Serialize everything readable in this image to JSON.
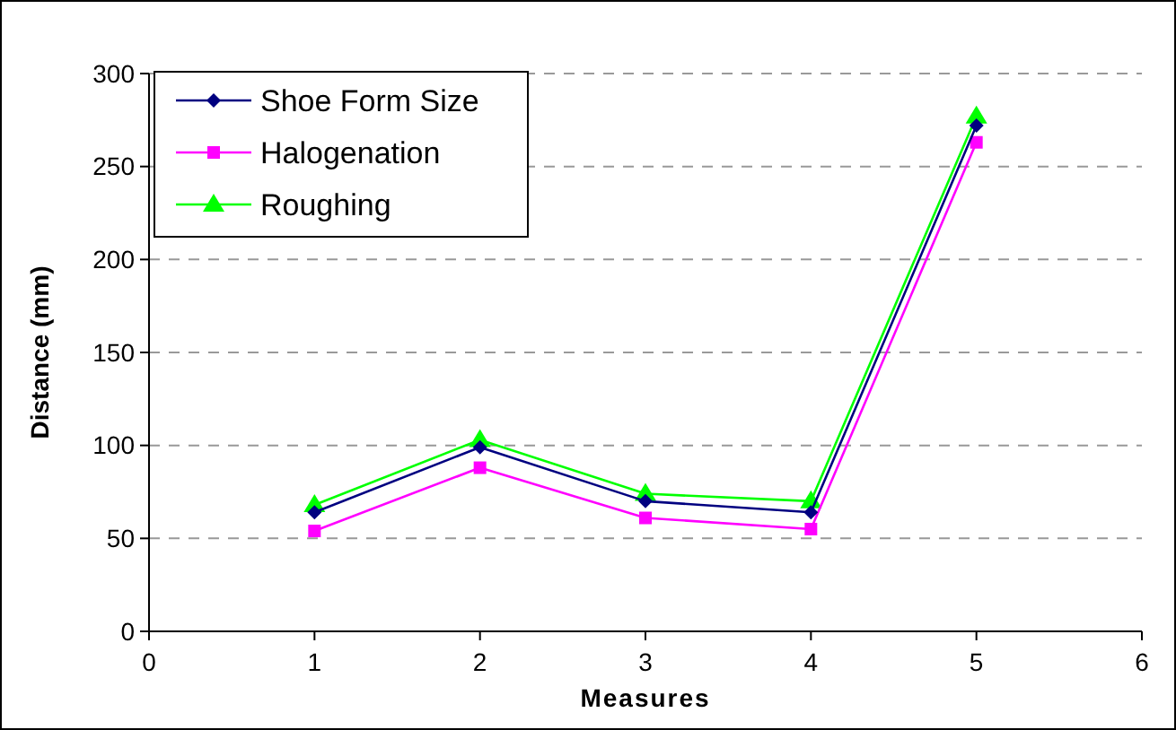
{
  "chart_data": {
    "type": "line",
    "xlabel": "Measures",
    "ylabel": "Distance (mm)",
    "x": [
      1,
      2,
      3,
      4,
      5
    ],
    "series": [
      {
        "name": "Shoe Form Size",
        "color": "#000080",
        "marker": "diamond",
        "values": [
          64,
          99,
          70,
          64,
          272
        ]
      },
      {
        "name": "Halogenation",
        "color": "#ff00ff",
        "marker": "square",
        "values": [
          54,
          88,
          61,
          55,
          263
        ]
      },
      {
        "name": "Roughing",
        "color": "#00ff00",
        "marker": "triangle",
        "values": [
          68,
          103,
          74,
          70,
          277
        ]
      }
    ],
    "xlim": [
      0,
      6
    ],
    "xticks": [
      0,
      1,
      2,
      3,
      4,
      5,
      6
    ],
    "ylim": [
      0,
      300
    ],
    "yticks": [
      0,
      50,
      100,
      150,
      200,
      250,
      300
    ],
    "grid": "y",
    "legend": "top left",
    "line_style": "solid"
  }
}
